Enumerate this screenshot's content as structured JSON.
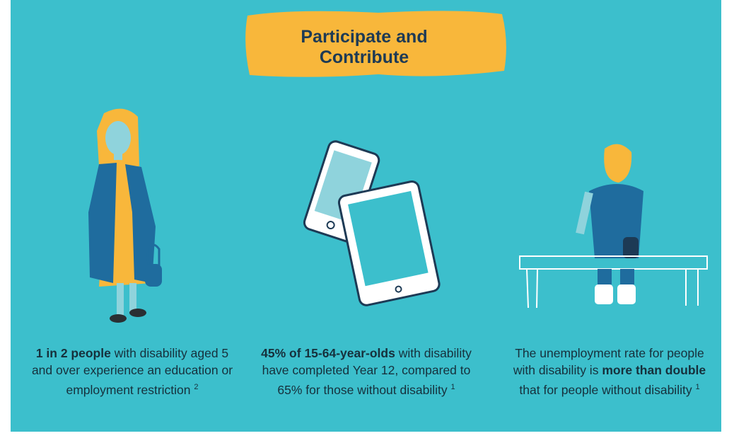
{
  "header": {
    "title_lines": [
      "Participate and",
      "Contribute"
    ]
  },
  "items": [
    {
      "before": "",
      "bold": "1 in 2 people",
      "after": "with disability aged 5 and over experience an education or employment restriction",
      "note": "2"
    },
    {
      "before": "",
      "bold": "45% of 15-64-year-olds",
      "after": "with disability have completed Year 12, compared to 65% for those without disability",
      "note": "1"
    },
    {
      "before": "The unemployment rate for people with disability is",
      "bold": "more than double",
      "after": "that for people without disability",
      "note": "1"
    }
  ]
}
